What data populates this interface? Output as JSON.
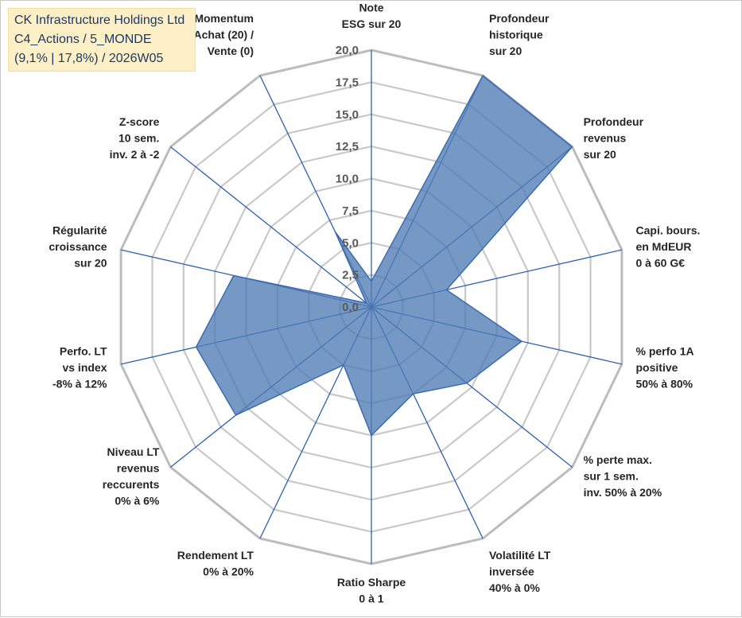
{
  "header": {
    "line1": "CK Infrastructure Holdings Ltd",
    "line2": "C4_Actions / 5_MONDE",
    "line3": "(9,1% | 17,8%) / 2026W05"
  },
  "colors": {
    "fill": "#4f7bb5",
    "stroke": "#3d6bb0",
    "spoke": "#2e5fb1",
    "grid": "#c9c9c9",
    "outer_ring": "#bcbcbc"
  },
  "chart_data": {
    "type": "radar",
    "title": "CK Infrastructure Holdings Ltd",
    "range": [
      0,
      20
    ],
    "ticks": [
      "0,0",
      "2,5",
      "5,0",
      "7,5",
      "10,0",
      "12,5",
      "15,0",
      "17,5",
      "20,0"
    ],
    "axes": [
      {
        "label": [
          "Note",
          "ESG sur 20"
        ],
        "value": 2.0
      },
      {
        "label": [
          "Profondeur",
          "historique",
          "sur 20"
        ],
        "value": 20.0
      },
      {
        "label": [
          "Profondeur",
          "revenus",
          "sur 20"
        ],
        "value": 20.0
      },
      {
        "label": [
          "Capi. bours.",
          "en MdEUR",
          "0 à 60 G€"
        ],
        "value": 6.0
      },
      {
        "label": [
          "% perfo 1A",
          "positive",
          "50% à 80%"
        ],
        "value": 12.0
      },
      {
        "label": [
          "% perte max.",
          "sur 1 sem.",
          "inv. 50% à 20%"
        ],
        "value": 9.5
      },
      {
        "label": [
          "Volatilité LT",
          "inversée",
          "40% à 0%"
        ],
        "value": 7.5
      },
      {
        "label": [
          "Ratio Sharpe",
          "0 à 1"
        ],
        "value": 10.0
      },
      {
        "label": [
          "Rendement LT",
          "0% à 20%"
        ],
        "value": 5.0
      },
      {
        "label": [
          "Niveau LT",
          "revenus",
          "reccurents",
          "0% à 6%"
        ],
        "value": 13.5
      },
      {
        "label": [
          "Perfo. LT",
          "vs index",
          "-8% à 12%"
        ],
        "value": 14.0
      },
      {
        "label": [
          "Régularité",
          "croissance",
          "sur 20"
        ],
        "value": 11.0
      },
      {
        "label": [
          "Z-score",
          "10 sem.",
          "inv. 2 à -2"
        ],
        "value": 0.5
      },
      {
        "label": [
          "Momentum",
          "Achat (20) /",
          "Vente (0)"
        ],
        "value": 6.5
      }
    ]
  }
}
